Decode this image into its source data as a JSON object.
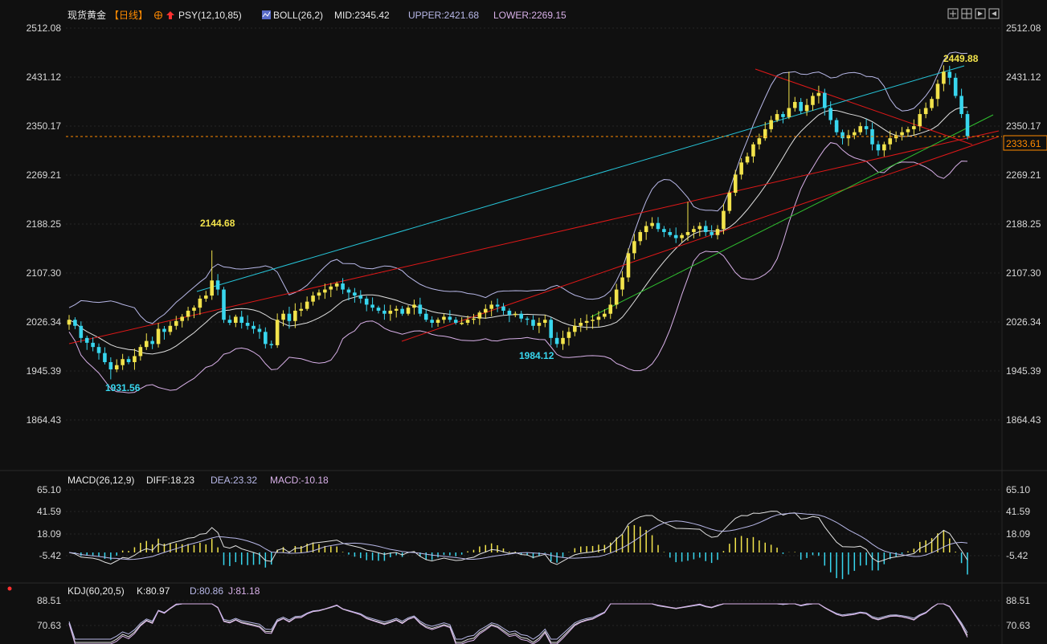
{
  "header": {
    "symbol": "现货黄金",
    "period": "【日线】",
    "psy": "PSY(12,10,85)",
    "boll": "BOLL(26,2)",
    "mid": "MID:2345.42",
    "upper": "UPPER:2421.68",
    "lower": "LOWER:2269.15"
  },
  "colors": {
    "up": "#f2e34b",
    "down": "#38d6ee",
    "mid": "#e0e0e0",
    "upperBand": "#b8b8e8",
    "lowerBand": "#d8b0e8",
    "trendRed": "#e01818",
    "trendCyan": "#26c6da",
    "trendGreen": "#2fbf2f",
    "last": "#ff8a00"
  },
  "main_ticks": [
    "2512.08",
    "2431.12",
    "2350.17",
    "2269.21",
    "2188.25",
    "2107.30",
    "2026.34",
    "1945.39",
    "1864.43"
  ],
  "last_price": "2333.61",
  "annotations": {
    "high": "2449.88",
    "peak1": "2144.68",
    "low1": "1931.56",
    "low2": "1984.12"
  },
  "macd": {
    "label": "MACD(26,12,9)",
    "diff": "DIFF:18.23",
    "dea": "DEA:23.32",
    "macd": "MACD:-10.18",
    "ticks": [
      "65.10",
      "41.59",
      "18.09",
      "-5.42"
    ]
  },
  "kdj": {
    "label": "KDJ(60,20,5)",
    "k": "K:80.97",
    "d": "D:80.86",
    "j": "J:81.18",
    "ticks": [
      "88.51",
      "70.63"
    ]
  },
  "chart_data": [
    {
      "type": "candlestick",
      "title": "现货黄金 【日线】",
      "y_ticks": [
        2512.08,
        2431.12,
        2350.17,
        2269.21,
        2188.25,
        2107.3,
        2026.34,
        1945.39,
        1864.43
      ],
      "ylim": [
        1830,
        2540
      ],
      "closes": [
        2030,
        2020,
        2000,
        1992,
        1985,
        1975,
        1960,
        1948,
        1955,
        1965,
        1960,
        1970,
        1985,
        1995,
        1990,
        2015,
        2010,
        2020,
        2028,
        2035,
        2045,
        2050,
        2065,
        2070,
        2095,
        2080,
        2030,
        2025,
        2035,
        2025,
        2020,
        2015,
        2010,
        1990,
        1988,
        2030,
        2040,
        2028,
        2045,
        2048,
        2060,
        2070,
        2075,
        2080,
        2085,
        2090,
        2080,
        2075,
        2070,
        2065,
        2055,
        2050,
        2045,
        2040,
        2045,
        2048,
        2040,
        2050,
        2055,
        2040,
        2030,
        2025,
        2030,
        2035,
        2030,
        2025,
        2025,
        2030,
        2032,
        2042,
        2048,
        2055,
        2052,
        2045,
        2038,
        2040,
        2032,
        2030,
        2020,
        2025,
        2030,
        2000,
        1990,
        2000,
        2010,
        2020,
        2025,
        2028,
        2030,
        2035,
        2040,
        2055,
        2080,
        2100,
        2140,
        2160,
        2175,
        2185,
        2190,
        2180,
        2175,
        2170,
        2165,
        2170,
        2175,
        2180,
        2185,
        2175,
        2170,
        2180,
        2210,
        2240,
        2270,
        2290,
        2300,
        2320,
        2330,
        2345,
        2360,
        2370,
        2365,
        2380,
        2390,
        2375,
        2385,
        2400,
        2405,
        2380,
        2360,
        2340,
        2330,
        2335,
        2340,
        2350,
        2345,
        2320,
        2310,
        2320,
        2330,
        2335,
        2340,
        2345,
        2350,
        2370,
        2380,
        2395,
        2420,
        2440,
        2430,
        2400,
        2370,
        2333.61
      ],
      "annotations": {
        "high": 2449.88,
        "peak1": 2144.68,
        "low1": 1931.56,
        "low2": 1984.12
      },
      "last_price": 2333.61,
      "boll": {
        "mid": 2345.42,
        "upper": 2421.68,
        "lower": 2269.15
      }
    },
    {
      "type": "line",
      "title": "MACD(26,12,9)",
      "y_ticks": [
        65.1,
        41.59,
        18.09,
        -5.42
      ],
      "ylim": [
        -40,
        75
      ],
      "series": [
        {
          "name": "DIFF",
          "value": 18.23
        },
        {
          "name": "DEA",
          "value": 23.32
        },
        {
          "name": "MACD",
          "value": -10.18
        }
      ]
    },
    {
      "type": "line",
      "title": "KDJ(60,20,5)",
      "y_ticks": [
        88.51,
        70.63
      ],
      "series": [
        {
          "name": "K",
          "value": 80.97
        },
        {
          "name": "D",
          "value": 80.86
        },
        {
          "name": "J",
          "value": 81.18
        }
      ]
    }
  ]
}
